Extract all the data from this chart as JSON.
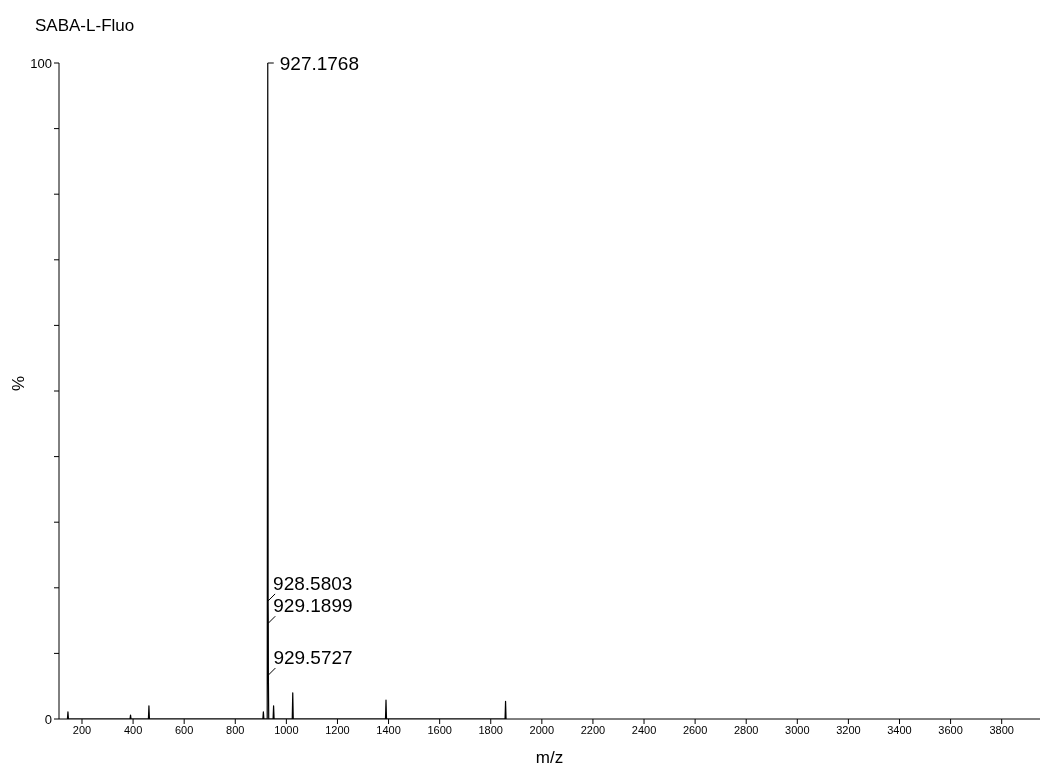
{
  "chart_data": {
    "type": "line",
    "title": "SABA-L-Fluo",
    "xlabel": "m/z",
    "ylabel": "%",
    "x": [
      143,
      145,
      147,
      388,
      390,
      392,
      460,
      462,
      464,
      908,
      910,
      912,
      925,
      927.1768,
      928.5803,
      929.1899,
      929.5727,
      931,
      948,
      950,
      952,
      1023,
      1025,
      1027,
      1388,
      1390,
      1392,
      1856,
      1858,
      1860
    ],
    "series": [
      {
        "color": "#000000",
        "values": [
          0,
          1.1,
          0,
          0,
          0.6,
          0,
          0,
          2.0,
          0,
          0,
          1.1,
          0,
          0,
          100,
          18,
          14.6,
          6.7,
          0,
          0,
          2.0,
          0,
          0,
          4.0,
          0,
          0,
          2.9,
          0,
          0,
          2.7,
          0
        ]
      }
    ],
    "xlim": [
      110,
      3950
    ],
    "xticks": [
      200,
      400,
      600,
      800,
      1000,
      1200,
      1400,
      1600,
      1800,
      2000,
      2200,
      2400,
      2600,
      2800,
      3000,
      3200,
      3400,
      3600,
      3800
    ],
    "ylim": [
      0,
      100
    ],
    "yticks": [
      0,
      {
        "value": 10,
        "label": null
      },
      {
        "value": 20,
        "label": null
      },
      {
        "value": 30,
        "label": null
      },
      {
        "value": 40,
        "label": null
      },
      {
        "value": 50,
        "label": null
      },
      {
        "value": 60,
        "label": null
      },
      {
        "value": 70,
        "label": null
      },
      {
        "value": 80,
        "label": null
      },
      {
        "value": 90,
        "label": null
      },
      100
    ],
    "grid": false,
    "legend": false,
    "marker": "none",
    "line_style": "solid",
    "annotations": [
      {
        "text": "927.1768",
        "x": 927.1768,
        "y": 100
      },
      {
        "text": "928.5803",
        "x": 928.5803,
        "y": 18
      },
      {
        "text": "929.1899",
        "x": 929.1899,
        "y": 14.6
      },
      {
        "text": "929.5727",
        "x": 929.5727,
        "y": 6.7
      }
    ]
  }
}
